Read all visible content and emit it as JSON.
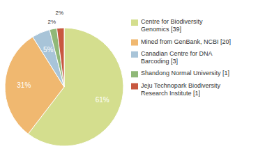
{
  "chart_data": {
    "type": "pie",
    "categories": [
      "Centre for Biodiversity\nGenomics [39]",
      "Mined from GenBank, NCBI [20]",
      "Canadian Centre for DNA\nBarcoding [3]",
      "Shandong Normal University [1]",
      "Jeju Technopark Biodiversity\nResearch Institute [1]"
    ],
    "values": [
      61,
      31,
      5,
      2,
      2
    ],
    "value_labels": [
      "61%",
      "31%",
      "5%",
      "2%",
      "2%"
    ],
    "colors": [
      "#d4de8e",
      "#f0b870",
      "#a8c4d8",
      "#90b878",
      "#c85840"
    ],
    "data_labels": true,
    "legend": "right"
  }
}
